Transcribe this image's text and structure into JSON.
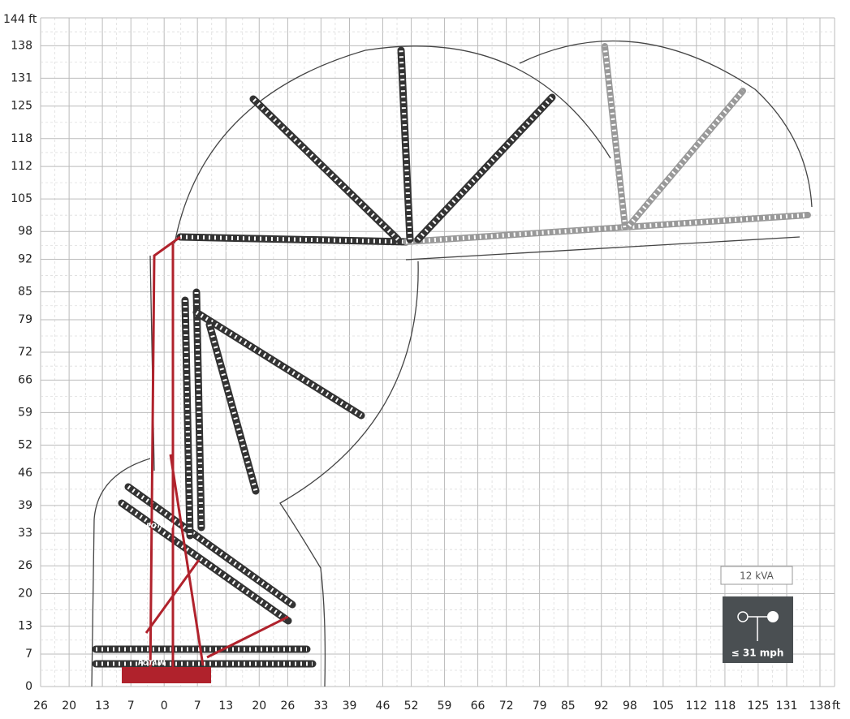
{
  "brand": "POTAIN",
  "badges": {
    "power": "12 kVA",
    "wind": "≤ 31 mph"
  },
  "x_axis": {
    "lim": [
      -26,
      138
    ],
    "unit": "ft",
    "ticks": [
      {
        "value": -26,
        "label": "26"
      },
      {
        "value": -20,
        "label": "20"
      },
      {
        "value": -13,
        "label": "13"
      },
      {
        "value": -7,
        "label": "7"
      },
      0,
      7,
      13,
      20,
      26,
      33,
      39,
      46,
      52,
      59,
      66,
      72,
      79,
      85,
      92,
      98,
      105,
      112,
      118,
      125,
      131,
      138
    ]
  },
  "y_axis": {
    "lim": [
      0,
      144
    ],
    "ticks": [
      0,
      7,
      13,
      20,
      26,
      33,
      39,
      46,
      52,
      59,
      66,
      72,
      79,
      85,
      92,
      98,
      105,
      112,
      118,
      125,
      131,
      138,
      {
        "value": 144,
        "label": "144 ft"
      }
    ]
  }
}
